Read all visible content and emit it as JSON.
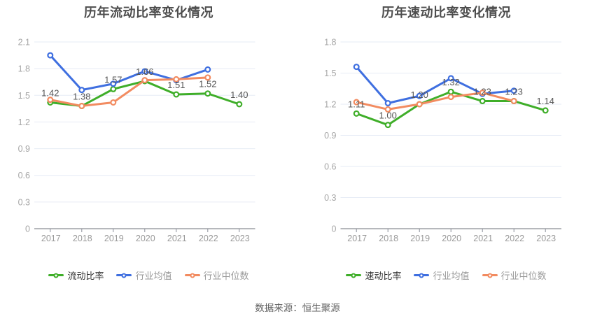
{
  "page": {
    "source_note": "数据来源：恒生聚源",
    "background_color": "#ffffff"
  },
  "chart_data": [
    {
      "type": "line",
      "title": "历年流动比率变化情况",
      "categories": [
        "2017",
        "2018",
        "2019",
        "2020",
        "2021",
        "2022",
        "2023"
      ],
      "ylim": [
        0,
        2.1
      ],
      "yticks": [
        "2.1",
        "1.8",
        "1.5",
        "1.2",
        "0.9",
        "0.6",
        "0.3",
        "0"
      ],
      "grid": true,
      "legend_position": "bottom",
      "legend": [
        "流动比率",
        "行业均值",
        "行业中位数"
      ],
      "series": [
        {
          "name": "流动比率",
          "color": "#3fae29",
          "values": [
            1.42,
            1.38,
            1.57,
            1.66,
            1.51,
            1.52,
            1.4
          ],
          "point_labels": [
            "1.42",
            "1.38",
            "1.57",
            "1.66",
            "1.51",
            "1.52",
            "1.40"
          ]
        },
        {
          "name": "行业均值",
          "color": "#3f6fe0",
          "values": [
            1.95,
            1.56,
            1.63,
            1.77,
            1.67,
            1.79,
            null
          ],
          "point_labels": []
        },
        {
          "name": "行业中位数",
          "color": "#f28b60",
          "values": [
            1.45,
            1.38,
            1.42,
            1.67,
            1.68,
            1.7,
            null
          ],
          "point_labels": []
        }
      ]
    },
    {
      "type": "line",
      "title": "历年速动比率变化情况",
      "categories": [
        "2017",
        "2018",
        "2019",
        "2020",
        "2021",
        "2022",
        "2023"
      ],
      "ylim": [
        0,
        1.8
      ],
      "yticks": [
        "1.8",
        "1.5",
        "1.2",
        "0.9",
        "0.6",
        "0.3",
        "0"
      ],
      "grid": true,
      "legend_position": "bottom",
      "legend": [
        "速动比率",
        "行业均值",
        "行业中位数"
      ],
      "series": [
        {
          "name": "速动比率",
          "color": "#3fae29",
          "values": [
            1.11,
            1.0,
            1.2,
            1.32,
            1.23,
            1.23,
            1.14
          ],
          "point_labels": [
            "1.11",
            "1.00",
            "1.20",
            "1.32",
            "1.23",
            "1.23",
            "1.14"
          ]
        },
        {
          "name": "行业均值",
          "color": "#3f6fe0",
          "values": [
            1.56,
            1.21,
            1.28,
            1.45,
            1.3,
            1.33,
            null
          ],
          "point_labels": []
        },
        {
          "name": "行业中位数",
          "color": "#f28b60",
          "values": [
            1.22,
            1.15,
            1.2,
            1.27,
            1.31,
            1.23,
            null
          ],
          "point_labels": []
        }
      ]
    }
  ]
}
